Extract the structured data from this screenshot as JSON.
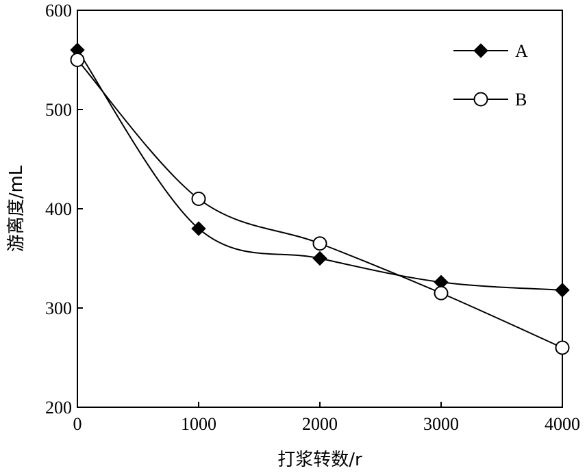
{
  "chart_data": {
    "type": "line",
    "xlabel": "打浆转数/r",
    "ylabel": "游离度/mL",
    "xlim": [
      0,
      4000
    ],
    "ylim": [
      200,
      600
    ],
    "x_ticks": [
      "0",
      "1000",
      "2000",
      "3000",
      "4000"
    ],
    "y_ticks": [
      "200",
      "300",
      "400",
      "500",
      "600"
    ],
    "grid": false,
    "legend_position": "top-right",
    "series": [
      {
        "name": "A",
        "marker": "filled-diamond",
        "color": "#000000",
        "x": [
          0,
          1000,
          2000,
          3000,
          4000
        ],
        "y": [
          560,
          380,
          350,
          326,
          318
        ]
      },
      {
        "name": "B",
        "marker": "open-circle",
        "color": "#000000",
        "x": [
          0,
          1000,
          2000,
          3000,
          4000
        ],
        "y": [
          550,
          410,
          365,
          315,
          260
        ]
      }
    ]
  }
}
